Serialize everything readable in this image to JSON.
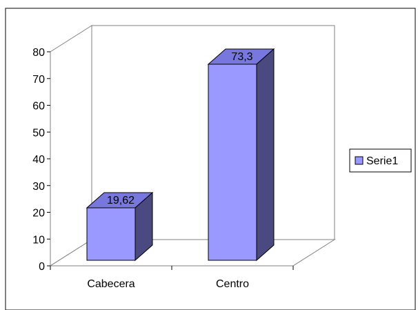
{
  "chart_data": {
    "type": "bar",
    "style": "3d-column",
    "categories": [
      "Cabecera",
      "Centro"
    ],
    "series": [
      {
        "name": "Serie1",
        "values": [
          19.62,
          73.3
        ],
        "labels": [
          "19,62",
          "73,3"
        ]
      }
    ],
    "ylim": [
      0,
      80
    ],
    "yticks": [
      "0",
      "10",
      "20",
      "30",
      "40",
      "50",
      "60",
      "70",
      "80"
    ],
    "legend": {
      "position": "right",
      "entries": [
        "Serie1"
      ]
    },
    "grid": false
  },
  "colors": {
    "bar_front": "#9999ff",
    "bar_top": "#7777dd",
    "bar_side": "#4a4a80",
    "wall": "#ffffff",
    "axis": "#808080",
    "frame": "#000000"
  }
}
